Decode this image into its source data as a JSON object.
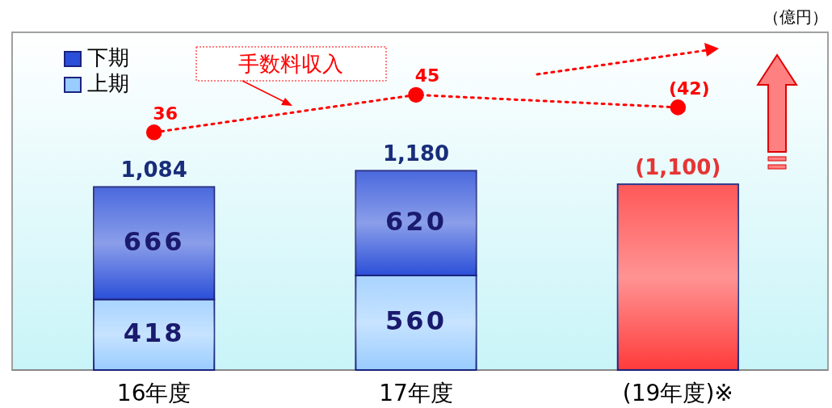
{
  "chart_data": {
    "type": "bar",
    "stacked": true,
    "categories": [
      "16年度",
      "17年度",
      "(19年度)※"
    ],
    "series": [
      {
        "name": "上期",
        "color": "#99ccff",
        "values": [
          418,
          560,
          null
        ],
        "value_labels": [
          "418",
          "560",
          null
        ]
      },
      {
        "name": "下期",
        "color": "#2b4fd8",
        "values": [
          666,
          620,
          null
        ],
        "value_labels": [
          "666",
          "620",
          null
        ]
      },
      {
        "color": "#ff3b3b",
        "values": [
          null,
          null,
          1100
        ]
      },
      {
        "name": "手数料収入",
        "type": "line",
        "axis": "y2",
        "color": "#ff0000",
        "values": [
          36,
          45,
          42
        ],
        "value_labels": [
          "36",
          "45",
          "(42)"
        ],
        "marker": "circle",
        "line_style": "dotted"
      }
    ],
    "totals": [
      "1,084",
      "1,180",
      "(1,100)"
    ],
    "ylim": [
      0,
      2000
    ],
    "y2lim": [
      -21,
      60
    ],
    "tick_labels": "x",
    "legend": "top left",
    "annotations": [
      "（億円）"
    ]
  }
}
